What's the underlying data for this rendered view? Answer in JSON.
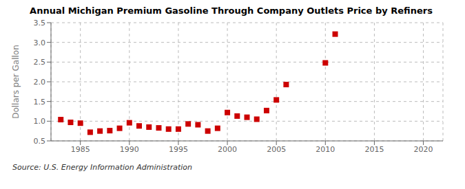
{
  "chart_data": {
    "type": "scatter",
    "title": "Annual Michigan Premium Gasoline Through Company Outlets Price by Refiners",
    "y_label": "Dollars per Gallon",
    "annotations": [
      "Source: U.S. Energy Information Administration"
    ],
    "x": [
      1983,
      1984,
      1985,
      1986,
      1987,
      1988,
      1989,
      1990,
      1991,
      1992,
      1993,
      1994,
      1995,
      1996,
      1997,
      1998,
      1999,
      2000,
      2001,
      2002,
      2003,
      2004,
      2005,
      2006,
      2010,
      2011
    ],
    "values": [
      1.04,
      0.97,
      0.95,
      0.72,
      0.75,
      0.76,
      0.82,
      0.96,
      0.88,
      0.85,
      0.83,
      0.8,
      0.8,
      0.93,
      0.91,
      0.75,
      0.82,
      1.22,
      1.13,
      1.1,
      1.05,
      1.27,
      1.54,
      1.93,
      2.48,
      3.21
    ],
    "color": "#cc0000",
    "marker": "square",
    "xlim": [
      1982,
      2022
    ],
    "ylim": [
      0.5,
      3.5
    ],
    "xticks": [
      1985,
      1990,
      1995,
      2000,
      2005,
      2010,
      2015,
      2020
    ],
    "yticks": [
      0.5,
      {
        "value": 1.0,
        "label": "1.0"
      },
      1.5,
      {
        "value": 2.0,
        "label": "2.0"
      },
      2.5,
      {
        "value": 3.0,
        "label": "3.0"
      },
      3.5
    ],
    "grid": true
  }
}
